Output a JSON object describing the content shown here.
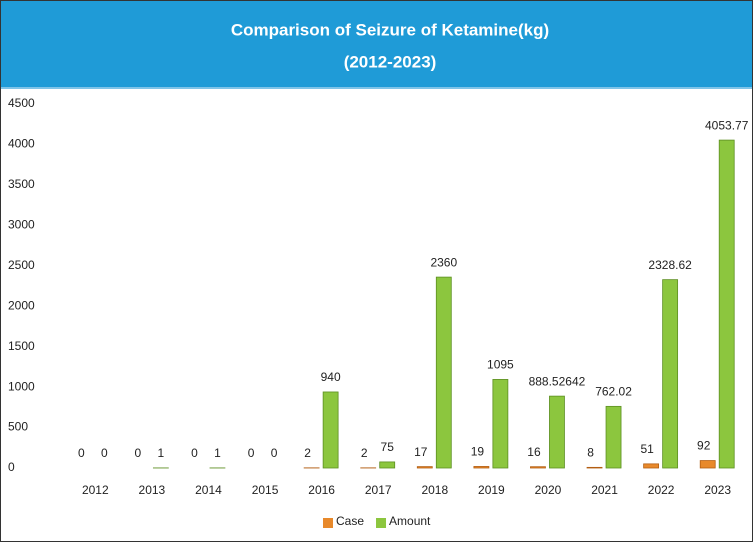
{
  "chart_data": {
    "type": "bar",
    "title": "Comparison of Seizure of Ketamine(kg)",
    "subtitle": "(2012-2023)",
    "categories": [
      "2012",
      "2013",
      "2014",
      "2015",
      "2016",
      "2017",
      "2018",
      "2019",
      "2020",
      "2021",
      "2022",
      "2023"
    ],
    "series": [
      {
        "name": "Case",
        "color": "#e8892b",
        "values": [
          0,
          0,
          0,
          0,
          2,
          2,
          17,
          19,
          16,
          8,
          51,
          92
        ]
      },
      {
        "name": "Amount",
        "color": "#8cc63e",
        "values": [
          0,
          1,
          1,
          0,
          940,
          75,
          2360,
          1095,
          888.52642,
          762.02,
          2328.62,
          4053.77
        ]
      }
    ],
    "ylim": [
      0,
      4500
    ],
    "yticks": [
      0,
      500,
      1000,
      1500,
      2000,
      2500,
      3000,
      3500,
      4000,
      4500
    ],
    "legend": "bottom",
    "grid": false
  }
}
